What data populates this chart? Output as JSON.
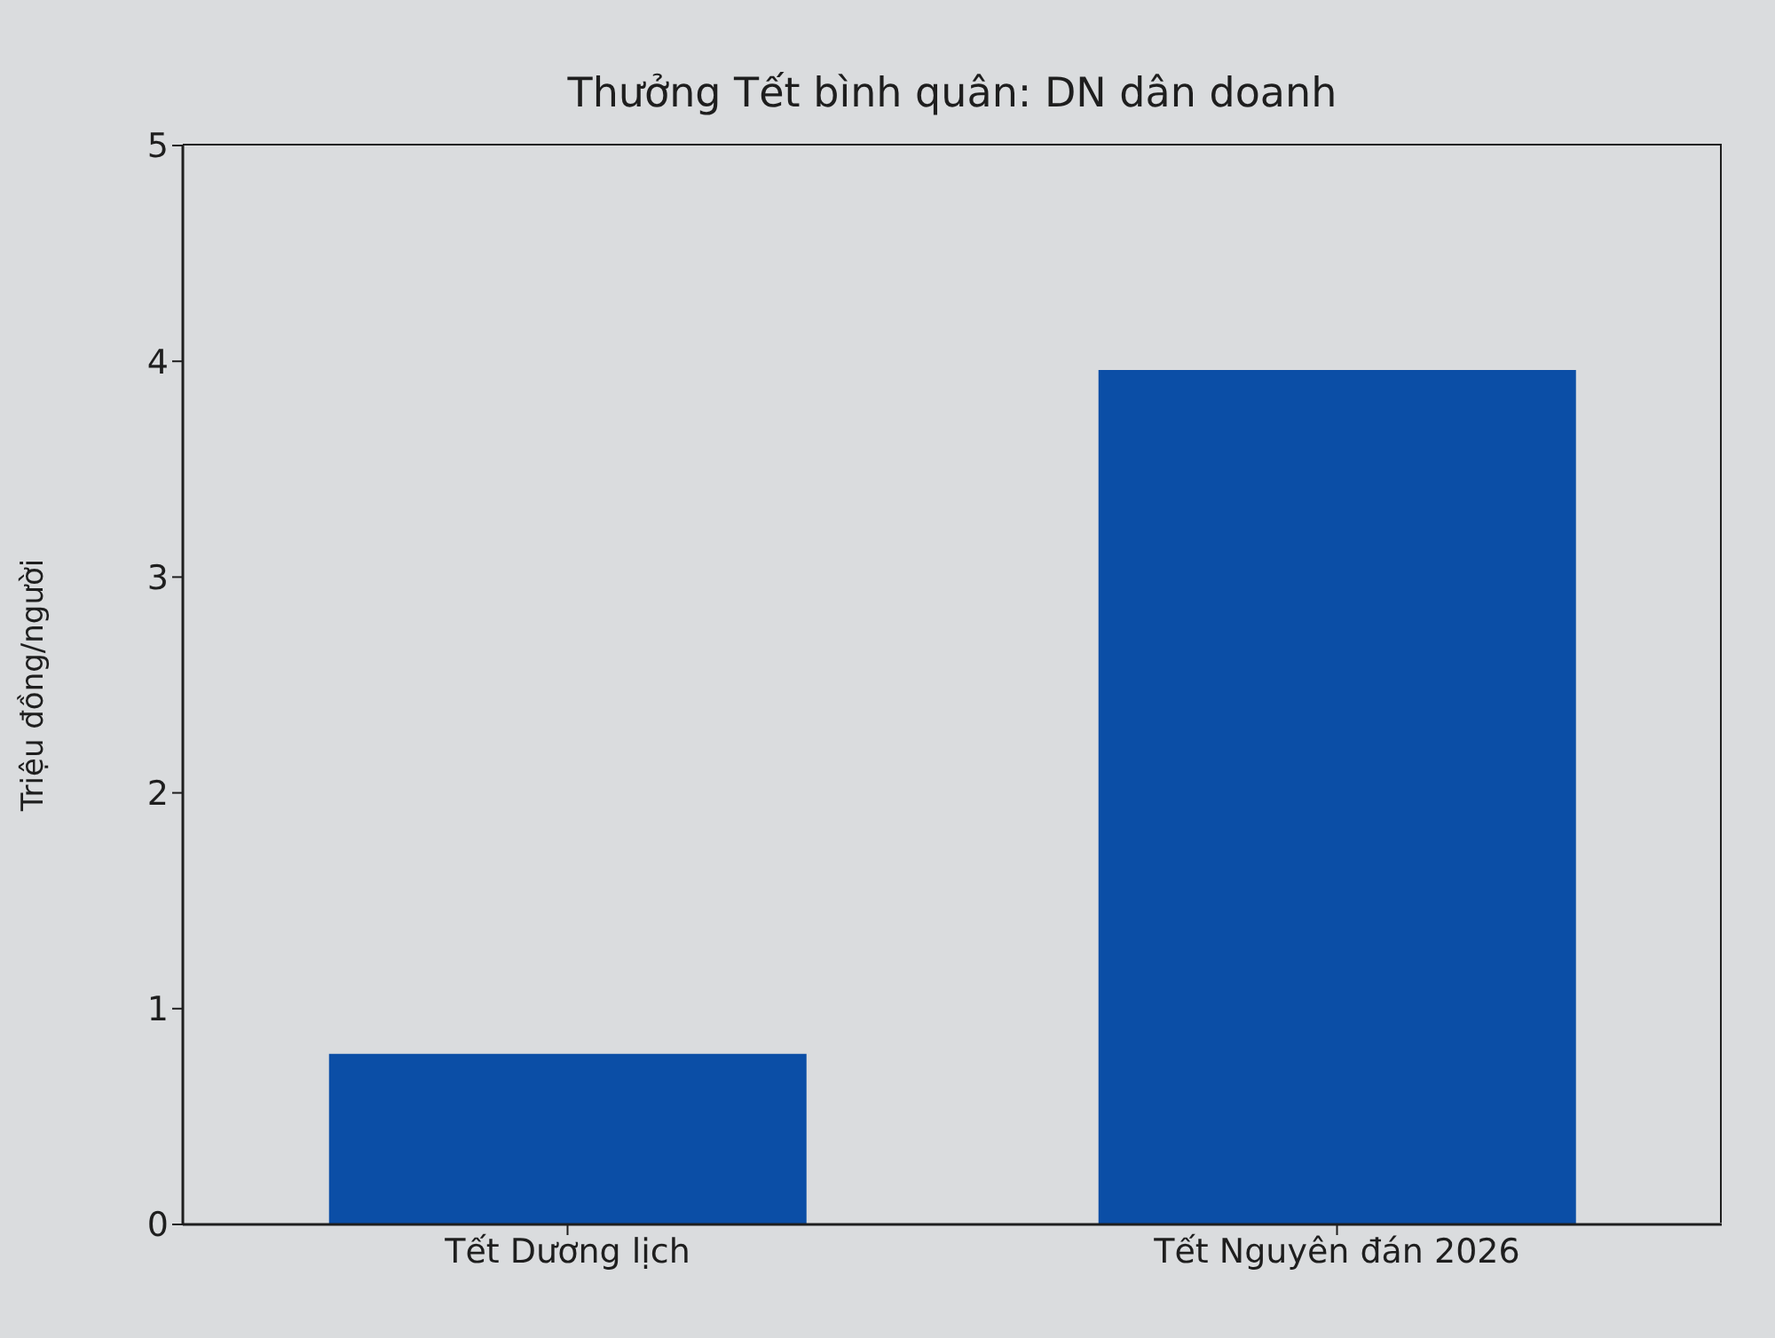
{
  "chart_data": {
    "type": "bar",
    "title": "Thưởng Tết bình quân: DN dân doanh",
    "ylabel": "Triệu đồng/người",
    "categories": [
      "Tết Dương lịch",
      "Tết Nguyên đán 2026"
    ],
    "values": [
      0.79,
      3.96
    ],
    "color": "#0b4ea6",
    "ylim": [
      0,
      5
    ],
    "yticks": [
      0,
      1,
      2,
      3,
      4,
      5
    ],
    "grid": false
  }
}
